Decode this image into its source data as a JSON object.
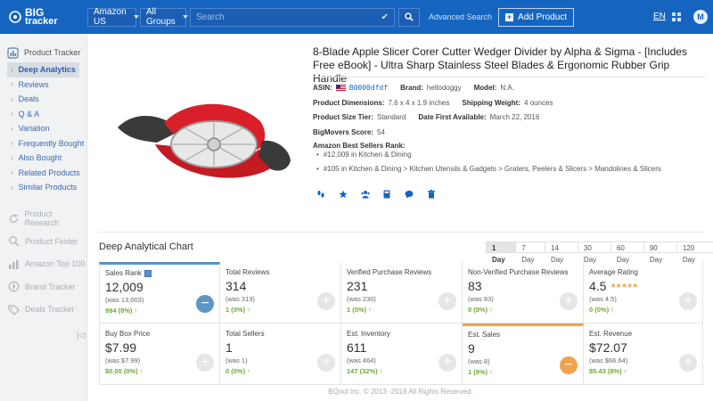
{
  "topbar": {
    "logo_line1": "BIG",
    "logo_line2": "tracker",
    "marketplace": "Amazon US",
    "group": "All Groups",
    "search_placeholder": "Search",
    "advanced_search": "Advanced Search",
    "add_product": "Add Product",
    "language": "EN",
    "avatar": "M",
    "brand_color": "#1565c0"
  },
  "sidebar": {
    "section": "Product Tracker",
    "items": [
      {
        "label": "Deep Analytics",
        "active": true
      },
      {
        "label": "Reviews"
      },
      {
        "label": "Deals"
      },
      {
        "label": "Q & A"
      },
      {
        "label": "Variation"
      },
      {
        "label": "Frequently Bought"
      },
      {
        "label": "Also Bought"
      },
      {
        "label": "Related Products"
      },
      {
        "label": "Similar Products"
      }
    ],
    "other": [
      {
        "label": "Product Research",
        "icon": "refresh-icon"
      },
      {
        "label": "Product Finder",
        "icon": "search-icon"
      },
      {
        "label": "Amazon Top 100",
        "icon": "chart-icon"
      },
      {
        "label": "Brand Tracker",
        "icon": "compass-icon"
      },
      {
        "label": "Deals Tracker",
        "icon": "tag-icon"
      }
    ]
  },
  "product": {
    "title": "8-Blade Apple Slicer Corer Cutter Wedger Divider by Alpha & Sigma - [Includes Free eBook] - Ultra Sharp Stainless Steel Blades & Ergonomic Rubber Grip Handle",
    "asin_label": "ASIN:",
    "asin": "B0000dfdf",
    "brand_label": "Brand:",
    "brand": "hellodoggy",
    "model_label": "Model:",
    "model": "N.A.",
    "dimensions_label": "Product Dimensions:",
    "dimensions": "7.6 x 4 x 1.9 inches",
    "weight_label": "Shipping Weight:",
    "weight": "4 ounces",
    "size_tier_label": "Product Size Tier:",
    "size_tier": "Standard",
    "date_label": "Date First Available:",
    "date": "March 22, 2016",
    "score_label": "BigMovers Score:",
    "score": "54",
    "bsr_label": "Amazon Best Sellers Rank:",
    "bsr": [
      "#12,009 in Kitchen & Dining",
      "#105 in Kitchen & Dining > Kitchen Utensils & Gadgets > Graters, Peelers & Slicers > Mandolines & Slicers"
    ]
  },
  "chart": {
    "title": "Deep Analytical Chart",
    "ranges": [
      "1 Day",
      "7 Day",
      "14 Day",
      "30 Day",
      "60 Day",
      "90 Day",
      "120 Day"
    ],
    "active_range": "1 Day"
  },
  "cards": {
    "sales_rank": {
      "label": "Sales Rank",
      "value": "12,009",
      "was": "(was 13,003)",
      "change": "994 (8%) ↑"
    },
    "total_reviews": {
      "label": "Total Reviews",
      "value": "314",
      "was": "(was 313)",
      "change": "1 (0%) ↑"
    },
    "verified_reviews": {
      "label": "Verified Purchase Reviews",
      "value": "231",
      "was": "(was 230)",
      "change": "1 (0%) ↑"
    },
    "nonverified_reviews": {
      "label": "Non-Verified Purchase Reviews",
      "value": "83",
      "was": "(was 83)",
      "change": "0 (0%) ↑"
    },
    "average_rating": {
      "label": "Average Rating",
      "value": "4.5",
      "stars": "★★★★★",
      "rating": 4.5,
      "was": "(was 4.5)",
      "change": "0 (0%) ↑"
    },
    "buy_box": {
      "label": "Buy Box Price",
      "value": "$7.99",
      "was": "(was $7.99)",
      "change": "$0.00 (0%) ↑"
    },
    "total_sellers": {
      "label": "Total Sellers",
      "value": "1",
      "was": "(was 1)",
      "change": "0 (0%) ↑"
    },
    "est_inventory": {
      "label": "Est. Inventory",
      "value": "611",
      "was": "(was 464)",
      "change": "147 (32%) ↑"
    },
    "est_sales": {
      "label": "Est. Sales",
      "value": "9",
      "was": "(was 8)",
      "change": "1 (8%) ↑"
    },
    "est_revenue": {
      "label": "Est. Revenue",
      "value": "$72.07",
      "was": "(was $66.64)",
      "change": "$5.43 (8%) ↑"
    }
  },
  "footer": "BQool Inc. © 2013 -2018 All Rights Reserved."
}
